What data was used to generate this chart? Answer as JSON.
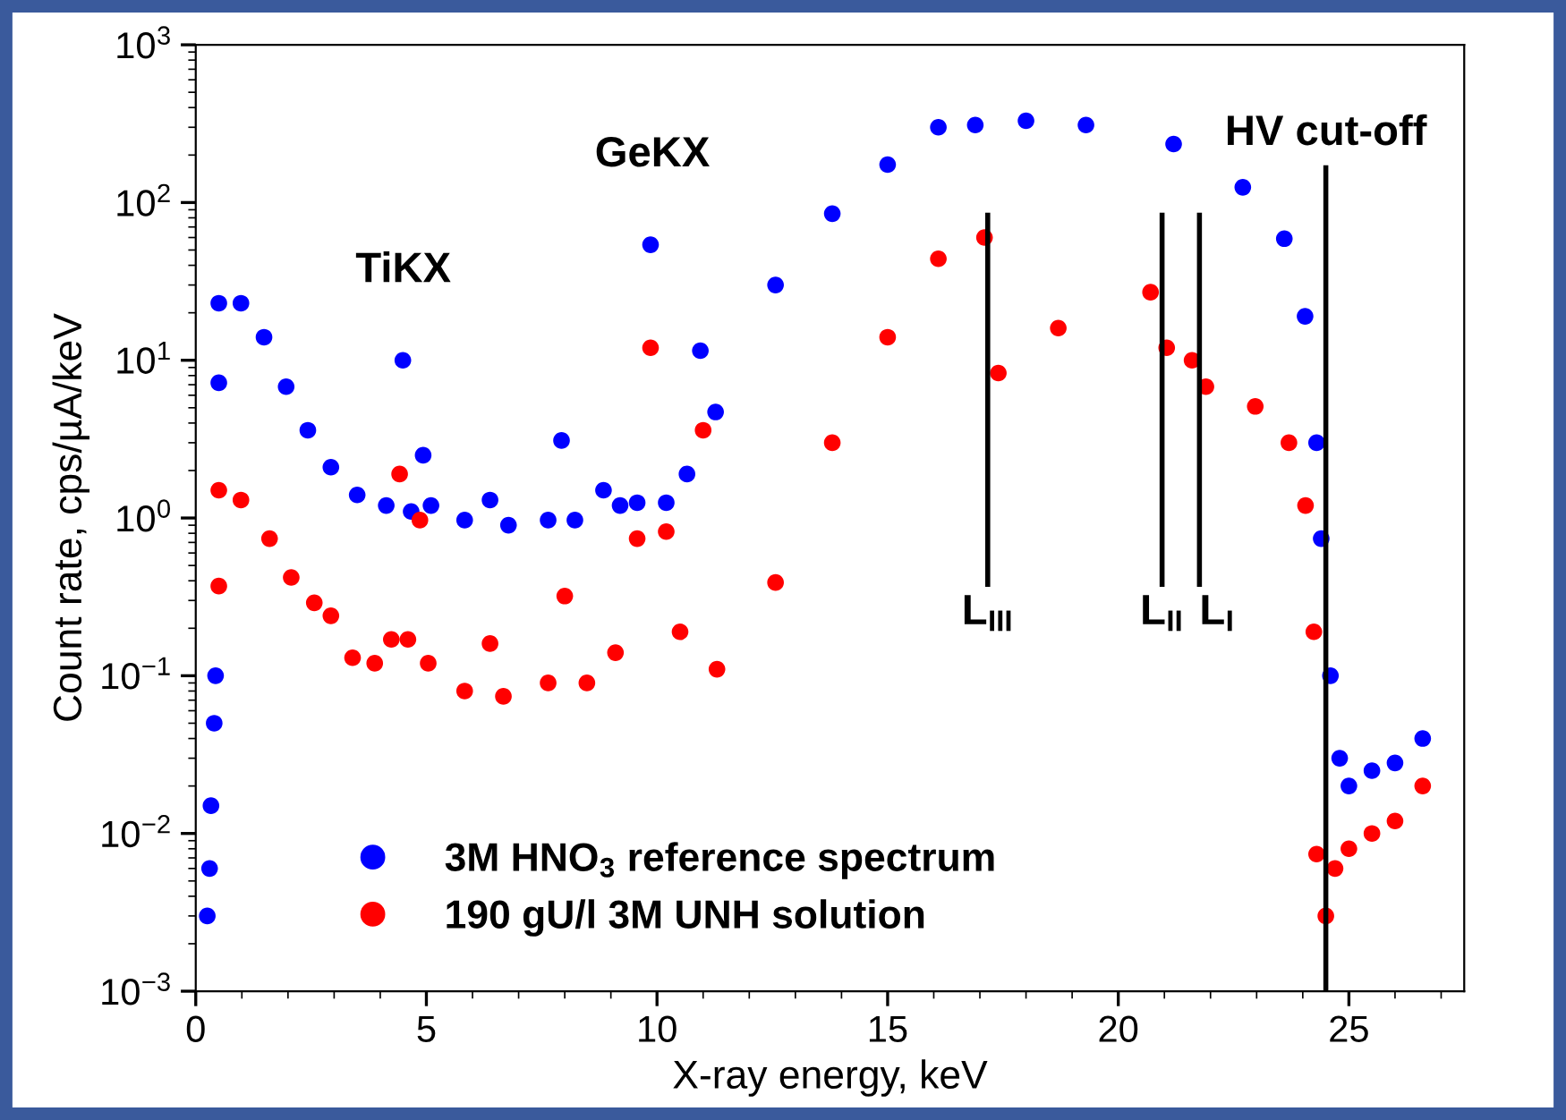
{
  "chart_data": {
    "type": "scatter",
    "xlabel": "X-ray energy, keV",
    "ylabel": "Count rate, cps/µA/keV",
    "xlim": [
      0,
      27.5
    ],
    "ylim": [
      0.001,
      1000
    ],
    "log": "y",
    "marker": "circle",
    "grid": false,
    "legend": "bottom left",
    "xticks": [
      0,
      {
        "value": 1,
        "label": null
      },
      {
        "value": 2,
        "label": null
      },
      {
        "value": 3,
        "label": null
      },
      {
        "value": 4,
        "label": null
      },
      5,
      {
        "value": 6,
        "label": null
      },
      {
        "value": 7,
        "label": null
      },
      {
        "value": 8,
        "label": null
      },
      {
        "value": 9,
        "label": null
      },
      10,
      {
        "value": 11,
        "label": null
      },
      {
        "value": 12,
        "label": null
      },
      {
        "value": 13,
        "label": null
      },
      {
        "value": 14,
        "label": null
      },
      15,
      {
        "value": 16,
        "label": null
      },
      {
        "value": 17,
        "label": null
      },
      {
        "value": 18,
        "label": null
      },
      {
        "value": 19,
        "label": null
      },
      20,
      {
        "value": 21,
        "label": null
      },
      {
        "value": 22,
        "label": null
      },
      {
        "value": 23,
        "label": null
      },
      {
        "value": 24,
        "label": null
      },
      25,
      {
        "value": 26,
        "label": null
      },
      {
        "value": 27,
        "label": null
      }
    ],
    "yticks": [
      {
        "value": 0.001,
        "label": "10$^{−3}$"
      },
      {
        "value": 0.01,
        "label": "10$^{−2}$"
      },
      {
        "value": 0.1,
        "label": "10$^{−1}$"
      },
      {
        "value": 1,
        "label": "10$^{0}$"
      },
      {
        "value": 10,
        "label": "10$^{1}$"
      },
      {
        "value": 100,
        "label": "10$^{2}$"
      },
      {
        "value": 1000,
        "label": "10$^{3}$"
      }
    ],
    "series": [
      {
        "name": "3M HNO$_{3}$ reference spectrum",
        "color": "#0000ff",
        "x": [
          0.25,
          0.3,
          0.33,
          0.4,
          0.43,
          0.5,
          0.5,
          0.98,
          1.48,
          1.96,
          2.43,
          2.93,
          3.5,
          4.13,
          4.49,
          4.67,
          4.93,
          5.1,
          5.83,
          6.38,
          6.78,
          7.64,
          7.93,
          8.22,
          8.84,
          9.2,
          9.57,
          9.86,
          10.2,
          10.65,
          10.94,
          11.27,
          12.57,
          13.8,
          15.0,
          16.1,
          16.9,
          18.0,
          19.3,
          21.2,
          22.7,
          23.6,
          24.05,
          24.3,
          24.4,
          24.6,
          24.8,
          25.0,
          25.5,
          26.0,
          26.6
        ],
        "values": [
          0.003,
          0.006,
          0.015,
          0.05,
          0.1,
          7.2,
          23,
          23,
          14,
          6.8,
          3.6,
          2.1,
          1.4,
          1.2,
          10,
          1.1,
          2.5,
          1.2,
          0.97,
          1.3,
          0.9,
          0.97,
          3.1,
          0.97,
          1.5,
          1.2,
          1.25,
          54,
          1.25,
          1.9,
          11.5,
          4.7,
          30,
          85,
          174,
          300,
          310,
          330,
          310,
          235,
          125,
          59,
          19,
          3.0,
          0.74,
          0.1,
          0.03,
          0.02,
          0.025,
          0.028,
          0.04
        ]
      },
      {
        "name": "190 gU/l 3M UNH solution",
        "color": "#ff0000",
        "x": [
          0.5,
          0.5,
          0.98,
          1.6,
          2.07,
          2.57,
          2.93,
          3.4,
          3.88,
          4.24,
          4.42,
          4.6,
          4.86,
          5.04,
          5.83,
          6.38,
          6.67,
          7.64,
          8.0,
          8.48,
          9.1,
          9.57,
          9.86,
          10.2,
          10.5,
          11.0,
          11.3,
          12.57,
          13.8,
          15.0,
          16.1,
          17.1,
          17.4,
          18.7,
          20.7,
          21.05,
          21.6,
          21.9,
          22.97,
          23.7,
          24.06,
          24.24,
          24.3,
          24.5,
          24.7,
          25.0,
          25.5,
          26.0,
          26.6
        ],
        "values": [
          0.37,
          1.5,
          1.3,
          0.74,
          0.42,
          0.29,
          0.24,
          0.13,
          0.12,
          0.17,
          1.9,
          0.17,
          0.97,
          0.12,
          0.08,
          0.16,
          0.074,
          0.09,
          0.32,
          0.09,
          0.14,
          0.74,
          12,
          0.82,
          0.19,
          3.6,
          0.11,
          0.39,
          3.0,
          14,
          44,
          60,
          8.3,
          16,
          27,
          12,
          10,
          6.8,
          5.1,
          3.0,
          1.2,
          0.19,
          0.0074,
          0.003,
          0.006,
          0.008,
          0.01,
          0.012,
          0.02
        ]
      }
    ],
    "ref_lines": [
      {
        "axis": "x",
        "value": 17.17,
        "label": "L$_{III}$",
        "color": "#000000"
      },
      {
        "axis": "x",
        "value": 20.95,
        "label": "L$_{II}$",
        "color": "#000000"
      },
      {
        "axis": "x",
        "value": 21.76,
        "label": "L$_{I}$",
        "color": "#000000"
      },
      {
        "axis": "x",
        "value": 24.5,
        "label": "HV cut-off",
        "color": "#000000"
      }
    ],
    "annotations": [
      {
        "text": "TiKX",
        "x": 4.5,
        "y": 10
      },
      {
        "text": "GeKX",
        "x": 9.9,
        "y": 54
      }
    ]
  }
}
